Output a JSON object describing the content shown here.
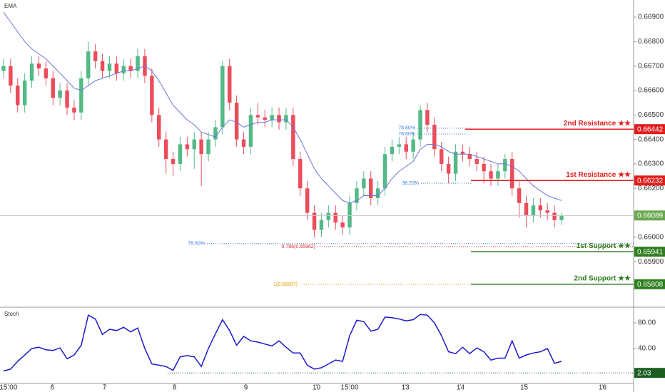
{
  "chart_data": [
    {
      "type": "candlestick",
      "legend": "EMA",
      "xlim": [
        -0.5,
        89.2
      ],
      "ylim": [
        0.65717,
        0.6697
      ],
      "yticks": [
        {
          "value": 0.669,
          "label": "0.66900"
        },
        {
          "value": 0.668,
          "label": "0.66800"
        },
        {
          "value": 0.667,
          "label": "0.66700"
        },
        {
          "value": 0.666,
          "label": "0.66600"
        },
        {
          "value": 0.665,
          "label": "0.66500"
        },
        {
          "value": 0.664,
          "label": "0.66400"
        },
        {
          "value": 0.663,
          "label": "0.66300"
        },
        {
          "value": 0.662,
          "label": "0.66200"
        },
        {
          "value": 0.66,
          "label": "0.66000"
        },
        {
          "value": 0.659,
          "label": "0.65900"
        }
      ],
      "up_color": "#53b987",
      "down_color": "#eb4d5c",
      "candles": [
        [
          0.6668,
          0.6673,
          0.6665,
          0.667
        ],
        [
          0.667,
          0.6673,
          0.6659,
          0.6662
        ],
        [
          0.6662,
          0.6665,
          0.6651,
          0.6654
        ],
        [
          0.6654,
          0.6667,
          0.6651,
          0.6664
        ],
        [
          0.6664,
          0.6674,
          0.6661,
          0.6671
        ],
        [
          0.6671,
          0.6674,
          0.6666,
          0.6669
        ],
        [
          0.6669,
          0.6672,
          0.6662,
          0.6665
        ],
        [
          0.6665,
          0.6668,
          0.6654,
          0.6657
        ],
        [
          0.6657,
          0.6663,
          0.6654,
          0.666
        ],
        [
          0.666,
          0.6663,
          0.665,
          0.6653
        ],
        [
          0.6653,
          0.6656,
          0.6648,
          0.6651
        ],
        [
          0.6651,
          0.6668,
          0.6648,
          0.6665
        ],
        [
          0.6665,
          0.668,
          0.6662,
          0.6676
        ],
        [
          0.6676,
          0.6679,
          0.6669,
          0.6672
        ],
        [
          0.6672,
          0.6675,
          0.6665,
          0.6668
        ],
        [
          0.6668,
          0.6674,
          0.6665,
          0.6671
        ],
        [
          0.6671,
          0.6674,
          0.6664,
          0.6667
        ],
        [
          0.6667,
          0.6673,
          0.6664,
          0.667
        ],
        [
          0.667,
          0.6673,
          0.6665,
          0.6668
        ],
        [
          0.6668,
          0.6677,
          0.6665,
          0.6674
        ],
        [
          0.6674,
          0.6677,
          0.6663,
          0.6666
        ],
        [
          0.6666,
          0.6669,
          0.6647,
          0.665
        ],
        [
          0.665,
          0.6653,
          0.6637,
          0.664
        ],
        [
          0.664,
          0.6643,
          0.6626,
          0.6632
        ],
        [
          0.6632,
          0.6635,
          0.6625,
          0.663
        ],
        [
          0.663,
          0.6641,
          0.6627,
          0.6638
        ],
        [
          0.6638,
          0.6641,
          0.6633,
          0.6636
        ],
        [
          0.6636,
          0.6643,
          0.6628,
          0.664
        ],
        [
          0.664,
          0.6643,
          0.6621,
          0.6634
        ],
        [
          0.6634,
          0.6643,
          0.6631,
          0.664
        ],
        [
          0.664,
          0.6648,
          0.6637,
          0.6645
        ],
        [
          0.6645,
          0.6672,
          0.6642,
          0.667
        ],
        [
          0.667,
          0.6673,
          0.6652,
          0.6655
        ],
        [
          0.6655,
          0.6658,
          0.6637,
          0.664
        ],
        [
          0.664,
          0.6643,
          0.6634,
          0.6637
        ],
        [
          0.6637,
          0.6653,
          0.6634,
          0.665
        ],
        [
          0.665,
          0.6655,
          0.6646,
          0.6649
        ],
        [
          0.6649,
          0.6652,
          0.6645,
          0.6648
        ],
        [
          0.6648,
          0.6653,
          0.6645,
          0.665
        ],
        [
          0.665,
          0.6653,
          0.6644,
          0.6647
        ],
        [
          0.6647,
          0.6653,
          0.6644,
          0.665
        ],
        [
          0.665,
          0.6653,
          0.6629,
          0.6632
        ],
        [
          0.6632,
          0.6635,
          0.6617,
          0.662
        ],
        [
          0.662,
          0.6623,
          0.6607,
          0.661
        ],
        [
          0.661,
          0.6613,
          0.66,
          0.6603
        ],
        [
          0.6603,
          0.661,
          0.66,
          0.6607
        ],
        [
          0.6607,
          0.6613,
          0.6604,
          0.661
        ],
        [
          0.661,
          0.6613,
          0.6603,
          0.6606
        ],
        [
          0.6606,
          0.6609,
          0.6601,
          0.6604
        ],
        [
          0.6604,
          0.6617,
          0.6601,
          0.6614
        ],
        [
          0.6614,
          0.6623,
          0.6611,
          0.662
        ],
        [
          0.662,
          0.6627,
          0.6617,
          0.6624
        ],
        [
          0.6624,
          0.6627,
          0.6613,
          0.6616
        ],
        [
          0.6616,
          0.6623,
          0.6613,
          0.662
        ],
        [
          0.662,
          0.6637,
          0.6617,
          0.6634
        ],
        [
          0.6634,
          0.664,
          0.6631,
          0.6637
        ],
        [
          0.6637,
          0.6641,
          0.6634,
          0.6638
        ],
        [
          0.6638,
          0.6641,
          0.6632,
          0.6635
        ],
        [
          0.6635,
          0.6643,
          0.6632,
          0.664
        ],
        [
          0.664,
          0.6654,
          0.6637,
          0.6652
        ],
        [
          0.6652,
          0.6655,
          0.6643,
          0.6646
        ],
        [
          0.6646,
          0.6649,
          0.6633,
          0.6636
        ],
        [
          0.6636,
          0.6639,
          0.6627,
          0.663
        ],
        [
          0.663,
          0.6633,
          0.6622,
          0.6626
        ],
        [
          0.6626,
          0.6638,
          0.6623,
          0.6635
        ],
        [
          0.6635,
          0.6638,
          0.6631,
          0.6634
        ],
        [
          0.6634,
          0.6637,
          0.6629,
          0.6632
        ],
        [
          0.6632,
          0.6635,
          0.6627,
          0.663
        ],
        [
          0.663,
          0.6633,
          0.6622,
          0.6627
        ],
        [
          0.6627,
          0.663,
          0.6621,
          0.6624
        ],
        [
          0.6624,
          0.663,
          0.6621,
          0.6627
        ],
        [
          0.6627,
          0.6634,
          0.6624,
          0.6632
        ],
        [
          0.6632,
          0.6635,
          0.6617,
          0.662
        ],
        [
          0.662,
          0.6623,
          0.6608,
          0.6614
        ],
        [
          0.6614,
          0.6617,
          0.6604,
          0.6609
        ],
        [
          0.6609,
          0.6616,
          0.6606,
          0.6613
        ],
        [
          0.6613,
          0.6616,
          0.6608,
          0.6611
        ],
        [
          0.6611,
          0.6614,
          0.6607,
          0.661
        ],
        [
          0.661,
          0.6613,
          0.6604,
          0.6607
        ],
        [
          0.6607,
          0.661,
          0.6605,
          0.6609
        ]
      ],
      "series": [
        {
          "name": "EMA",
          "color": "#6a75d8",
          "values": [
            0.6692,
            0.6688,
            0.6684,
            0.668,
            0.6677,
            0.6675,
            0.6673,
            0.667,
            0.6667,
            0.6664,
            0.6661,
            0.666,
            0.6662,
            0.6664,
            0.6665,
            0.6666,
            0.6667,
            0.6668,
            0.6668,
            0.6669,
            0.667,
            0.6668,
            0.6664,
            0.6659,
            0.6654,
            0.6651,
            0.6648,
            0.6646,
            0.6643,
            0.6642,
            0.6641,
            0.6645,
            0.6648,
            0.6647,
            0.6645,
            0.6646,
            0.6647,
            0.6647,
            0.6648,
            0.6648,
            0.6648,
            0.6645,
            0.664,
            0.6634,
            0.6628,
            0.6624,
            0.6621,
            0.6618,
            0.6615,
            0.6614,
            0.6615,
            0.6617,
            0.6617,
            0.6617,
            0.662,
            0.6624,
            0.6627,
            0.6629,
            0.6631,
            0.6636,
            0.6638,
            0.6638,
            0.6637,
            0.6635,
            0.6634,
            0.6634,
            0.6634,
            0.6633,
            0.6632,
            0.6631,
            0.663,
            0.663,
            0.6629,
            0.6627,
            0.6624,
            0.6621,
            0.6619,
            0.6617,
            0.6616,
            0.6615
          ]
        }
      ],
      "levels": [
        {
          "name": "2nd Resistance ★★",
          "value": 0.66442,
          "color": "#e11d1d"
        },
        {
          "name": "1st Resistance ★★",
          "value": 0.66232,
          "color": "#e11d1d"
        },
        {
          "name": "1st Support ★★",
          "value": 0.65941,
          "color": "#2e7d1f"
        },
        {
          "name": "2nd Support ★★",
          "value": 0.65808,
          "color": "#2e7d1f"
        }
      ],
      "fib_levels": [
        {
          "label": "78.60%",
          "value": 0.66446,
          "color": "#3d7bd9"
        },
        {
          "label": "78.60%",
          "value": 0.66422,
          "color": "#3d7bd9"
        },
        {
          "label": "38.20%",
          "value": 0.66221,
          "color": "#3d7bd9"
        },
        {
          "label": "78.60%",
          "value": 0.65974,
          "color": "#3d7bd9"
        },
        {
          "label": "0.786(0.65962)",
          "value": 0.65962,
          "color": "#d32f2f"
        },
        {
          "label": "1(0.65807)",
          "value": 0.65807,
          "color": "#e69a00"
        }
      ],
      "last_price": {
        "value": 0.66089,
        "color": "#6aa84f"
      }
    },
    {
      "type": "line",
      "legend": "Stoch",
      "xlim": [
        -0.5,
        89.2
      ],
      "ylim": [
        -14.4,
        103.3
      ],
      "yticks": [
        {
          "value": 80,
          "label": "80.00"
        },
        {
          "value": 40,
          "label": "40.00"
        }
      ],
      "xticks": [
        {
          "value": 0.7,
          "label": "15:00"
        },
        {
          "value": 6.9,
          "label": "6"
        },
        {
          "value": 14.3,
          "label": "7"
        },
        {
          "value": 24.2,
          "label": "8"
        },
        {
          "value": 34.3,
          "label": "9"
        },
        {
          "value": 44.3,
          "label": "10"
        },
        {
          "value": 49,
          "label": "15:00"
        },
        {
          "value": 56.9,
          "label": "13"
        },
        {
          "value": 64.7,
          "label": "14"
        },
        {
          "value": 73.7,
          "label": "15"
        },
        {
          "value": 84.8,
          "label": "16"
        }
      ],
      "series": [
        {
          "name": "Stoch",
          "color": "#1a1acc",
          "values": [
            5,
            8,
            20,
            30,
            40,
            42,
            38,
            37,
            41,
            24,
            30,
            45,
            92,
            86,
            62,
            70,
            68,
            73,
            66,
            72,
            40,
            16,
            14,
            12,
            6,
            27,
            29,
            27,
            12,
            40,
            63,
            85,
            68,
            45,
            59,
            52,
            50,
            47,
            44,
            52,
            42,
            33,
            33,
            14,
            8,
            10,
            16,
            22,
            20,
            60,
            84,
            82,
            67,
            70,
            89,
            88,
            86,
            83,
            85,
            93,
            92,
            80,
            60,
            35,
            32,
            42,
            32,
            41,
            35,
            22,
            25,
            25,
            52,
            25,
            30,
            33,
            35,
            40,
            17,
            20
          ]
        }
      ],
      "reference_line": {
        "value": 2.03,
        "color": "#1b5e20"
      }
    }
  ]
}
